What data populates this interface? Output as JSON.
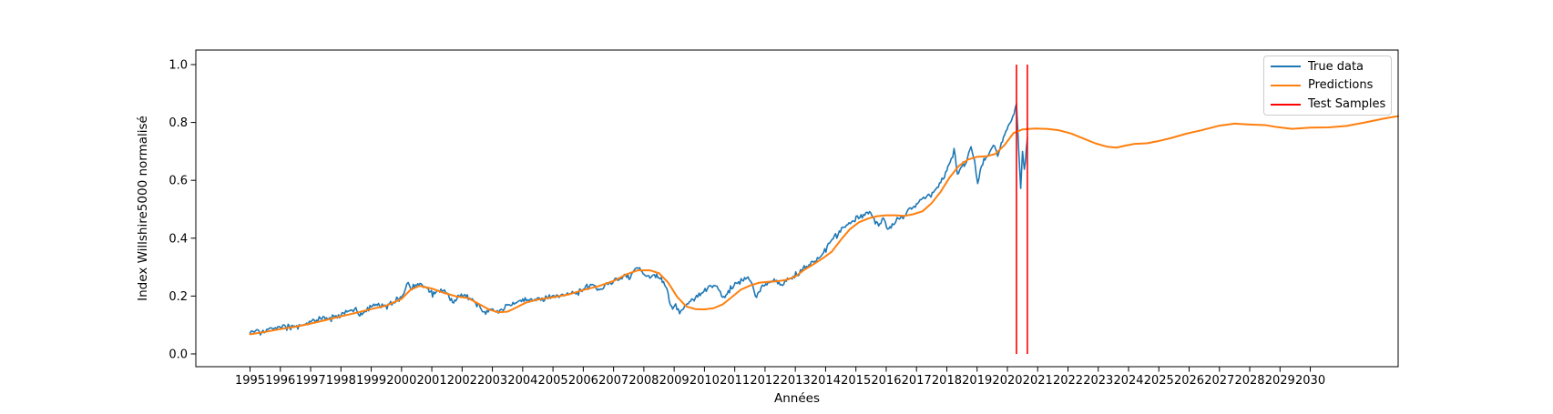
{
  "chart_data": {
    "type": "line",
    "title": "",
    "xlabel": "Années",
    "ylabel": "Index Willshire5000 normalisé",
    "xlim": [
      1993.21,
      2032.9
    ],
    "ylim": [
      -0.0441,
      1.0503
    ],
    "grid": false,
    "x_ticks": [
      1995,
      1996,
      1997,
      1998,
      1999,
      2000,
      2001,
      2002,
      2003,
      2004,
      2005,
      2006,
      2007,
      2008,
      2009,
      2010,
      2011,
      2012,
      2013,
      2014,
      2015,
      2016,
      2017,
      2018,
      2019,
      2020,
      2021,
      2022,
      2023,
      2024,
      2025,
      2026,
      2027,
      2028,
      2029,
      2030
    ],
    "y_tick_values": [
      0.0,
      0.2,
      0.4,
      0.6,
      0.8,
      1.0
    ],
    "y_tick_labels": [
      "0.0",
      "0.2",
      "0.4",
      "0.6",
      "0.8",
      "1.0"
    ],
    "legend": {
      "position": "upper right",
      "entries": [
        {
          "label": "True data",
          "color": "#1f77b4"
        },
        {
          "label": "Predictions",
          "color": "#ff7f0e"
        },
        {
          "label": "Test Samples",
          "color": "#ff0000"
        }
      ]
    },
    "series": [
      {
        "name": "True data",
        "color": "#1f77b4",
        "width": 1.6,
        "noise_amplitude": 0.008,
        "points": [
          [
            1995.0,
            0.072
          ],
          [
            1995.3,
            0.078
          ],
          [
            1995.6,
            0.085
          ],
          [
            1995.8,
            0.088
          ],
          [
            1996.0,
            0.092
          ],
          [
            1996.3,
            0.096
          ],
          [
            1996.5,
            0.094
          ],
          [
            1996.7,
            0.1
          ],
          [
            1997.0,
            0.111
          ],
          [
            1997.2,
            0.117
          ],
          [
            1997.45,
            0.128
          ],
          [
            1997.6,
            0.122
          ],
          [
            1997.8,
            0.13
          ],
          [
            1998.0,
            0.133
          ],
          [
            1998.2,
            0.145
          ],
          [
            1998.45,
            0.155
          ],
          [
            1998.62,
            0.131
          ],
          [
            1998.8,
            0.147
          ],
          [
            1999.0,
            0.163
          ],
          [
            1999.2,
            0.168
          ],
          [
            1999.4,
            0.164
          ],
          [
            1999.6,
            0.172
          ],
          [
            1999.8,
            0.179
          ],
          [
            2000.0,
            0.196
          ],
          [
            2000.13,
            0.225
          ],
          [
            2000.22,
            0.247
          ],
          [
            2000.35,
            0.222
          ],
          [
            2000.5,
            0.236
          ],
          [
            2000.65,
            0.242
          ],
          [
            2000.8,
            0.23
          ],
          [
            2000.95,
            0.215
          ],
          [
            2001.1,
            0.208
          ],
          [
            2001.3,
            0.224
          ],
          [
            2001.5,
            0.21
          ],
          [
            2001.72,
            0.176
          ],
          [
            2001.9,
            0.2
          ],
          [
            2002.05,
            0.202
          ],
          [
            2002.25,
            0.193
          ],
          [
            2002.45,
            0.175
          ],
          [
            2002.6,
            0.16
          ],
          [
            2002.78,
            0.137
          ],
          [
            2002.9,
            0.153
          ],
          [
            2003.05,
            0.148
          ],
          [
            2003.2,
            0.141
          ],
          [
            2003.4,
            0.157
          ],
          [
            2003.6,
            0.167
          ],
          [
            2003.8,
            0.177
          ],
          [
            2004.0,
            0.19
          ],
          [
            2004.2,
            0.184
          ],
          [
            2004.4,
            0.189
          ],
          [
            2004.6,
            0.185
          ],
          [
            2004.8,
            0.196
          ],
          [
            2005.0,
            0.202
          ],
          [
            2005.2,
            0.195
          ],
          [
            2005.4,
            0.202
          ],
          [
            2005.6,
            0.209
          ],
          [
            2005.8,
            0.214
          ],
          [
            2006.0,
            0.224
          ],
          [
            2006.2,
            0.232
          ],
          [
            2006.35,
            0.237
          ],
          [
            2006.5,
            0.224
          ],
          [
            2006.7,
            0.235
          ],
          [
            2006.85,
            0.244
          ],
          [
            2007.0,
            0.252
          ],
          [
            2007.2,
            0.259
          ],
          [
            2007.4,
            0.271
          ],
          [
            2007.55,
            0.261
          ],
          [
            2007.75,
            0.297
          ],
          [
            2007.9,
            0.288
          ],
          [
            2008.05,
            0.27
          ],
          [
            2008.2,
            0.262
          ],
          [
            2008.35,
            0.274
          ],
          [
            2008.5,
            0.263
          ],
          [
            2008.65,
            0.25
          ],
          [
            2008.8,
            0.21
          ],
          [
            2008.88,
            0.168
          ],
          [
            2008.95,
            0.155
          ],
          [
            2009.05,
            0.173
          ],
          [
            2009.18,
            0.139
          ],
          [
            2009.35,
            0.167
          ],
          [
            2009.5,
            0.18
          ],
          [
            2009.7,
            0.193
          ],
          [
            2009.9,
            0.21
          ],
          [
            2010.1,
            0.226
          ],
          [
            2010.3,
            0.236
          ],
          [
            2010.45,
            0.225
          ],
          [
            2010.6,
            0.196
          ],
          [
            2010.75,
            0.207
          ],
          [
            2010.9,
            0.225
          ],
          [
            2011.05,
            0.245
          ],
          [
            2011.25,
            0.254
          ],
          [
            2011.4,
            0.263
          ],
          [
            2011.55,
            0.247
          ],
          [
            2011.68,
            0.2
          ],
          [
            2011.8,
            0.215
          ],
          [
            2011.95,
            0.235
          ],
          [
            2012.1,
            0.248
          ],
          [
            2012.3,
            0.259
          ],
          [
            2012.5,
            0.238
          ],
          [
            2012.7,
            0.251
          ],
          [
            2012.9,
            0.259
          ],
          [
            2013.05,
            0.272
          ],
          [
            2013.25,
            0.295
          ],
          [
            2013.45,
            0.308
          ],
          [
            2013.65,
            0.32
          ],
          [
            2013.85,
            0.338
          ],
          [
            2014.05,
            0.372
          ],
          [
            2014.25,
            0.398
          ],
          [
            2014.45,
            0.425
          ],
          [
            2014.65,
            0.438
          ],
          [
            2014.85,
            0.455
          ],
          [
            2015.05,
            0.477
          ],
          [
            2015.25,
            0.482
          ],
          [
            2015.45,
            0.492
          ],
          [
            2015.6,
            0.468
          ],
          [
            2015.75,
            0.442
          ],
          [
            2015.9,
            0.47
          ],
          [
            2016.05,
            0.431
          ],
          [
            2016.2,
            0.45
          ],
          [
            2016.4,
            0.468
          ],
          [
            2016.6,
            0.477
          ],
          [
            2016.8,
            0.505
          ],
          [
            2017.0,
            0.519
          ],
          [
            2017.2,
            0.538
          ],
          [
            2017.4,
            0.552
          ],
          [
            2017.6,
            0.565
          ],
          [
            2017.8,
            0.592
          ],
          [
            2018.0,
            0.633
          ],
          [
            2018.15,
            0.676
          ],
          [
            2018.24,
            0.71
          ],
          [
            2018.35,
            0.622
          ],
          [
            2018.5,
            0.648
          ],
          [
            2018.65,
            0.663
          ],
          [
            2018.8,
            0.716
          ],
          [
            2018.92,
            0.668
          ],
          [
            2019.02,
            0.589
          ],
          [
            2019.15,
            0.65
          ],
          [
            2019.3,
            0.68
          ],
          [
            2019.45,
            0.705
          ],
          [
            2019.58,
            0.718
          ],
          [
            2019.68,
            0.683
          ],
          [
            2019.8,
            0.73
          ],
          [
            2019.95,
            0.77
          ],
          [
            2020.1,
            0.8
          ],
          [
            2020.22,
            0.828
          ],
          [
            2020.3,
            0.865
          ],
          [
            2020.38,
            0.69
          ],
          [
            2020.44,
            0.572
          ],
          [
            2020.5,
            0.7
          ],
          [
            2020.56,
            0.638
          ],
          [
            2020.66,
            0.748
          ]
        ]
      },
      {
        "name": "Predictions",
        "color": "#ff7f0e",
        "width": 2.0,
        "noise_amplitude": 0,
        "points": [
          [
            1995.0,
            0.068
          ],
          [
            1995.5,
            0.076
          ],
          [
            1996.0,
            0.086
          ],
          [
            1996.5,
            0.094
          ],
          [
            1997.0,
            0.105
          ],
          [
            1997.5,
            0.117
          ],
          [
            1998.0,
            0.13
          ],
          [
            1998.5,
            0.142
          ],
          [
            1999.0,
            0.155
          ],
          [
            1999.5,
            0.167
          ],
          [
            2000.0,
            0.19
          ],
          [
            2000.3,
            0.222
          ],
          [
            2000.6,
            0.235
          ],
          [
            2001.0,
            0.226
          ],
          [
            2001.4,
            0.211
          ],
          [
            2001.8,
            0.199
          ],
          [
            2002.2,
            0.193
          ],
          [
            2002.6,
            0.17
          ],
          [
            2002.9,
            0.153
          ],
          [
            2003.2,
            0.144
          ],
          [
            2003.5,
            0.146
          ],
          [
            2003.8,
            0.161
          ],
          [
            2004.1,
            0.177
          ],
          [
            2004.5,
            0.188
          ],
          [
            2005.0,
            0.196
          ],
          [
            2005.5,
            0.205
          ],
          [
            2006.0,
            0.221
          ],
          [
            2006.5,
            0.234
          ],
          [
            2007.0,
            0.252
          ],
          [
            2007.4,
            0.274
          ],
          [
            2007.8,
            0.289
          ],
          [
            2008.2,
            0.289
          ],
          [
            2008.5,
            0.279
          ],
          [
            2008.8,
            0.247
          ],
          [
            2009.1,
            0.197
          ],
          [
            2009.4,
            0.164
          ],
          [
            2009.7,
            0.155
          ],
          [
            2010.0,
            0.154
          ],
          [
            2010.3,
            0.158
          ],
          [
            2010.6,
            0.171
          ],
          [
            2010.9,
            0.196
          ],
          [
            2011.2,
            0.222
          ],
          [
            2011.5,
            0.236
          ],
          [
            2011.8,
            0.246
          ],
          [
            2012.1,
            0.249
          ],
          [
            2012.4,
            0.251
          ],
          [
            2012.7,
            0.256
          ],
          [
            2013.0,
            0.268
          ],
          [
            2013.3,
            0.291
          ],
          [
            2013.6,
            0.31
          ],
          [
            2013.9,
            0.33
          ],
          [
            2014.2,
            0.353
          ],
          [
            2014.5,
            0.394
          ],
          [
            2014.8,
            0.431
          ],
          [
            2015.1,
            0.455
          ],
          [
            2015.4,
            0.468
          ],
          [
            2015.7,
            0.476
          ],
          [
            2016.0,
            0.479
          ],
          [
            2016.3,
            0.479
          ],
          [
            2016.6,
            0.477
          ],
          [
            2016.9,
            0.483
          ],
          [
            2017.2,
            0.493
          ],
          [
            2017.5,
            0.521
          ],
          [
            2017.8,
            0.561
          ],
          [
            2018.1,
            0.611
          ],
          [
            2018.4,
            0.65
          ],
          [
            2018.7,
            0.672
          ],
          [
            2019.0,
            0.681
          ],
          [
            2019.3,
            0.683
          ],
          [
            2019.6,
            0.691
          ],
          [
            2019.9,
            0.721
          ],
          [
            2020.2,
            0.763
          ],
          [
            2020.5,
            0.776
          ],
          [
            2020.9,
            0.779
          ],
          [
            2021.3,
            0.778
          ],
          [
            2021.7,
            0.773
          ],
          [
            2022.1,
            0.762
          ],
          [
            2022.5,
            0.745
          ],
          [
            2022.9,
            0.728
          ],
          [
            2023.3,
            0.716
          ],
          [
            2023.6,
            0.713
          ],
          [
            2023.9,
            0.72
          ],
          [
            2024.2,
            0.726
          ],
          [
            2024.6,
            0.728
          ],
          [
            2025.0,
            0.736
          ],
          [
            2025.4,
            0.746
          ],
          [
            2025.9,
            0.761
          ],
          [
            2026.4,
            0.773
          ],
          [
            2027.0,
            0.789
          ],
          [
            2027.5,
            0.796
          ],
          [
            2028.0,
            0.793
          ],
          [
            2028.5,
            0.791
          ],
          [
            2028.9,
            0.784
          ],
          [
            2029.4,
            0.778
          ],
          [
            2030.0,
            0.782
          ],
          [
            2030.6,
            0.783
          ],
          [
            2031.2,
            0.788
          ],
          [
            2031.8,
            0.8
          ],
          [
            2032.4,
            0.813
          ],
          [
            2032.9,
            0.822
          ]
        ]
      }
    ],
    "vlines": {
      "name": "Test Samples",
      "color": "#ff0000",
      "width": 1.6,
      "x": [
        2020.3,
        2020.66
      ],
      "ymin": 0.0,
      "ymax": 1.0
    }
  }
}
